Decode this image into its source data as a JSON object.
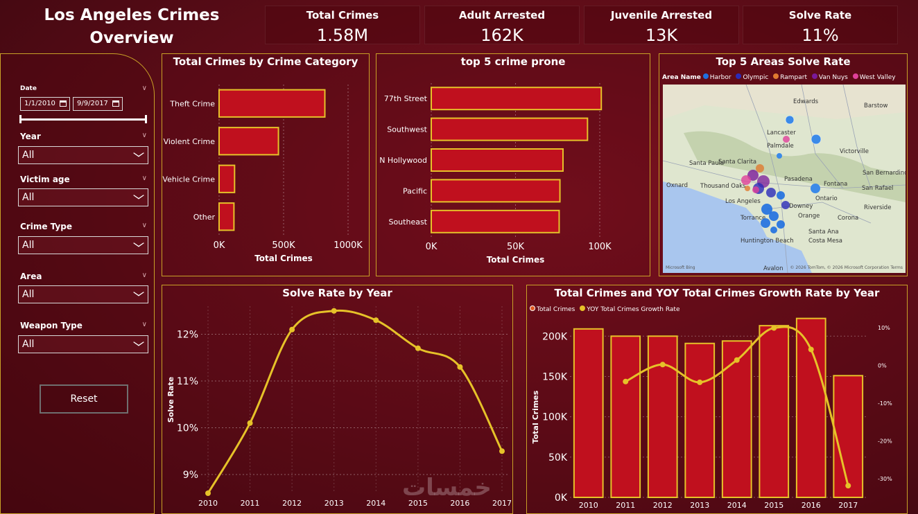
{
  "header": {
    "title_line1": "Los Angeles Crimes",
    "title_line2": "Overview"
  },
  "kpis": [
    {
      "label": "Total Crimes",
      "value": "1.58M"
    },
    {
      "label": "Adult Arrested",
      "value": "162K"
    },
    {
      "label": "Juvenile Arrested",
      "value": "13K"
    },
    {
      "label": "Solve Rate",
      "value": "11%"
    }
  ],
  "filters": {
    "date_label": "Date",
    "date_from": "1/1/2010",
    "date_to": "9/9/2017",
    "year_label": "Year",
    "year_value": "All",
    "victim_age_label": "Victim age",
    "victim_age_value": "All",
    "crime_type_label": "Crime Type",
    "crime_type_value": "All",
    "area_label": "Area",
    "area_value": "All",
    "weapon_type_label": "Weapon Type",
    "weapon_type_value": "All",
    "reset_label": "Reset"
  },
  "map": {
    "title": "Top 5 Areas Solve Rate",
    "legend_title": "Area Name",
    "legend": [
      {
        "name": "Harbor",
        "color": "#1f6fe0"
      },
      {
        "name": "Olympic",
        "color": "#2b2bb8"
      },
      {
        "name": "Rampart",
        "color": "#e07a30"
      },
      {
        "name": "Van Nuys",
        "color": "#7a1a9a"
      },
      {
        "name": "West Valley",
        "color": "#e0409a"
      }
    ],
    "places": [
      "Edwards",
      "Barstow",
      "Lancaster",
      "Palmdale",
      "Victorville",
      "Santa Clarita",
      "Santa Paula",
      "Oxnard",
      "Thousand Oaks",
      "Pasadena",
      "Fontana",
      "San Bernardino",
      "San Rafael",
      "Los Angeles",
      "Ontario",
      "Riverside",
      "Downey",
      "Torrance",
      "Orange",
      "Corona",
      "Santa Ana",
      "Huntington Beach",
      "Costa Mesa",
      "Avalon"
    ],
    "attribution": "© 2026 TomTom, © 2026 Microsoft Corporation  Terms",
    "bing": "Microsoft Bing"
  },
  "watermark": "خمسات",
  "charts": [
    {
      "chart_data": {
        "type": "bar",
        "orientation": "horizontal",
        "title": "Total Crimes by Crime Category",
        "categories": [
          "Theft Crime",
          "Violent Crime",
          "Vehicle Crime",
          "Other"
        ],
        "values": [
          820000,
          460000,
          120000,
          115000
        ],
        "xlabel": "Total Crimes",
        "xlim": [
          0,
          1000000
        ],
        "ticks": [
          "0K",
          "500K",
          "1000K"
        ],
        "grid": true,
        "colors": {
          "bar": "#c0101e",
          "outline": "#e6c229"
        }
      }
    },
    {
      "chart_data": {
        "type": "bar",
        "orientation": "horizontal",
        "title": "top 5 crime prone",
        "categories": [
          "77th Street",
          "Southwest",
          "N Hollywood",
          "Pacific",
          "Southeast"
        ],
        "values": [
          111000,
          102000,
          86000,
          84000,
          83500
        ],
        "xlabel": "Total Crimes",
        "xlim": [
          0,
          110000
        ],
        "ticks": [
          "0K",
          "50K",
          "100K"
        ],
        "grid": true,
        "colors": {
          "bar": "#c0101e",
          "outline": "#e6c229"
        }
      }
    },
    {
      "chart_data": {
        "type": "line",
        "title": "Solve Rate by Year",
        "x": [
          "2010",
          "2011",
          "2012",
          "2013",
          "2014",
          "2015",
          "2016",
          "2017"
        ],
        "values": [
          8.6,
          10.1,
          12.1,
          12.5,
          12.3,
          11.7,
          11.3,
          9.5
        ],
        "ylabel": "Solve Rate",
        "ylim": [
          8.6,
          12.6
        ],
        "yticks": [
          "9%",
          "10%",
          "11%",
          "12%"
        ],
        "grid": true,
        "colors": {
          "line": "#e6c229"
        }
      }
    },
    {
      "chart_data": {
        "type": "bar",
        "title": "Total Crimes and YOY Total Crimes Growth Rate by Year",
        "x": [
          "2010",
          "2011",
          "2012",
          "2013",
          "2014",
          "2015",
          "2016",
          "2017"
        ],
        "series": [
          {
            "name": "Total Crimes",
            "type": "bar",
            "values": [
              209000,
              200000,
              200000,
              191000,
              194000,
              213000,
              222000,
              151000
            ]
          },
          {
            "name": "YOY Total Crimes Growth Rate",
            "type": "line",
            "values": [
              null,
              -4.3,
              0.2,
              -4.5,
              1.4,
              9.9,
              4.2,
              -31.9
            ]
          }
        ],
        "ylabel": "Total Crimes",
        "ylim": [
          0,
          220000
        ],
        "yticks": [
          "0K",
          "50K",
          "100K",
          "150K",
          "200K"
        ],
        "y2lim": [
          -35,
          12
        ],
        "y2ticks": [
          "10%",
          "0%",
          "-10%",
          "-20%",
          "-30%"
        ],
        "legend_placement": "top-left",
        "colors": {
          "bar": "#c0101e",
          "outline": "#e6c229",
          "line": "#e6c229",
          "legend_bar": "#e0581f"
        }
      }
    }
  ]
}
